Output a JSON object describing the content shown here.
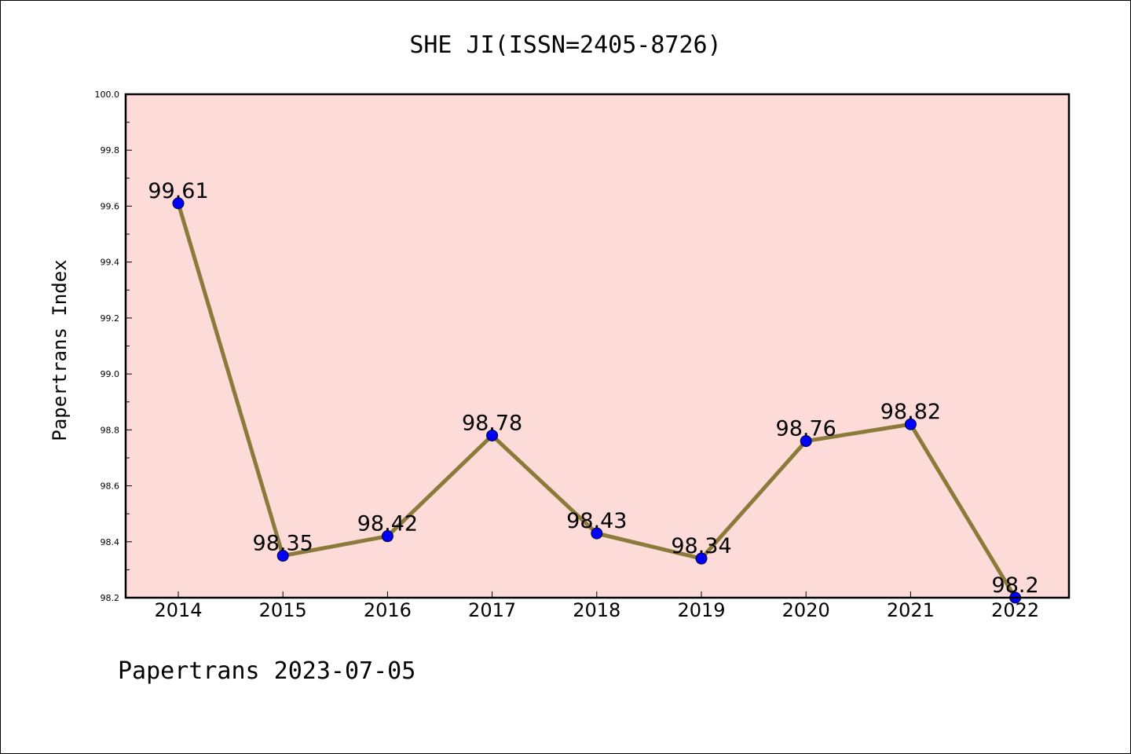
{
  "chart_data": {
    "type": "line",
    "title": "SHE JI(ISSN=2405-8726)",
    "ylabel": "Papertrans Index",
    "xlabel": "",
    "categories": [
      "2014",
      "2015",
      "2016",
      "2017",
      "2018",
      "2019",
      "2020",
      "2021",
      "2022"
    ],
    "values": [
      99.61,
      98.35,
      98.42,
      98.78,
      98.43,
      98.34,
      98.76,
      98.82,
      98.2
    ],
    "data_labels": [
      "99.61",
      "98.35",
      "98.42",
      "98.78",
      "98.43",
      "98.34",
      "98.76",
      "98.82",
      "98.2"
    ],
    "ylim": [
      98.2,
      100.0
    ],
    "yticks": [
      "98.2",
      "98.4",
      "98.6",
      "98.8",
      "99.0",
      "99.2",
      "99.4",
      "99.6",
      "99.8",
      "100.0"
    ],
    "grid": false,
    "legend": "none",
    "colors": {
      "plot_background": "#fddbd9",
      "line": "#8c7a3a",
      "marker": "#0000ff"
    }
  },
  "footer": "Papertrans 2023-07-05"
}
